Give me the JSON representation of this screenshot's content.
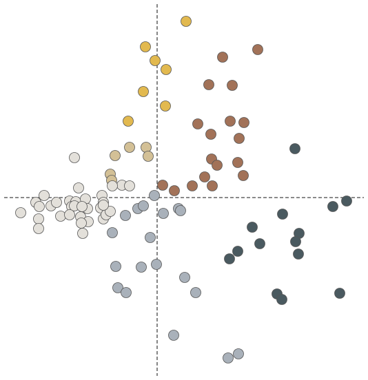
{
  "chart_data": {
    "type": "scatter",
    "xlim": [
      -2.22,
      3.0
    ],
    "ylim": [
      -2.59,
      2.81
    ],
    "axhline": 0,
    "axvline": 0,
    "series": [
      {
        "color": "#e2b94f",
        "x": [
          0.42,
          -0.17,
          -0.03,
          0.13,
          -0.2,
          0.12,
          -0.42
        ],
        "values": [
          2.56,
          2.19,
          1.99,
          1.86,
          1.54,
          1.33,
          1.11
        ]
      },
      {
        "color": "#d3c096",
        "x": [
          -0.4,
          -0.16,
          -0.61,
          -0.13,
          -0.68,
          -0.66
        ],
        "values": [
          0.73,
          0.73,
          0.61,
          0.6,
          0.34,
          0.25
        ]
      },
      {
        "color": "#a27258",
        "x": [
          0.95,
          1.46,
          0.75,
          1.09,
          0.59,
          0.78,
          1.06,
          1.26,
          1.19,
          0.79,
          0.87,
          1.17,
          0.69,
          1.25,
          0.8,
          0.51,
          0.25,
          0.08
        ],
        "values": [
          2.04,
          2.15,
          1.64,
          1.63,
          1.07,
          0.92,
          1.11,
          1.09,
          0.86,
          0.56,
          0.47,
          0.51,
          0.3,
          0.32,
          0.17,
          0.17,
          0.1,
          0.18
        ]
      },
      {
        "color": "#4a5a60",
        "x": [
          2.0,
          2.75,
          2.55,
          1.82,
          1.38,
          2.06,
          2.01,
          1.49,
          1.17,
          1.05,
          2.05,
          1.74,
          1.81,
          2.65
        ],
        "values": [
          0.71,
          -0.05,
          -0.13,
          -0.24,
          -0.43,
          -0.52,
          -0.64,
          -0.67,
          -0.78,
          -0.89,
          -0.82,
          -1.4,
          -1.48,
          -1.39
        ]
      },
      {
        "color": "#a9b1ba",
        "x": [
          -0.1,
          -0.01,
          -0.23,
          -0.6,
          -0.57,
          -0.45,
          0.4,
          0.56,
          0.24,
          1.03,
          1.18,
          -0.65,
          -0.46,
          -0.28,
          -0.2,
          0.09,
          0.31,
          0.34,
          -0.04
        ],
        "values": [
          -0.58,
          -0.97,
          -1.01,
          -1.0,
          -1.31,
          -1.38,
          -1.16,
          -1.38,
          -2.0,
          -2.33,
          -2.27,
          -0.51,
          -0.26,
          -0.16,
          -0.12,
          -0.23,
          -0.16,
          -0.19,
          0.03
        ]
      },
      {
        "color": "#e3e0da",
        "x": [
          -1.2,
          -1.14,
          -1.64,
          -1.76,
          -1.71,
          -1.98,
          -1.54,
          -1.46,
          -1.27,
          -1.18,
          -1.24,
          -1.04,
          -1.2,
          -1.01,
          -1.09,
          -1.4,
          -1.27,
          -1.11,
          -1.0,
          -1.1,
          -1.72,
          -1.72,
          -1.08,
          -0.8,
          -0.78,
          -0.82,
          -0.78,
          -0.74,
          -0.68,
          -0.78,
          -0.51,
          -0.4,
          -0.65
        ],
        "values": [
          0.58,
          0.14,
          0.03,
          -0.07,
          -0.13,
          -0.22,
          -0.12,
          -0.07,
          -0.05,
          -0.06,
          -0.13,
          -0.02,
          -0.12,
          -0.16,
          -0.13,
          -0.27,
          -0.25,
          -0.28,
          -0.35,
          -0.37,
          -0.31,
          -0.45,
          -0.52,
          0.03,
          -0.07,
          -0.15,
          -0.31,
          -0.25,
          -0.2,
          -0.11,
          0.18,
          0.17,
          0.17
        ]
      }
    ]
  }
}
